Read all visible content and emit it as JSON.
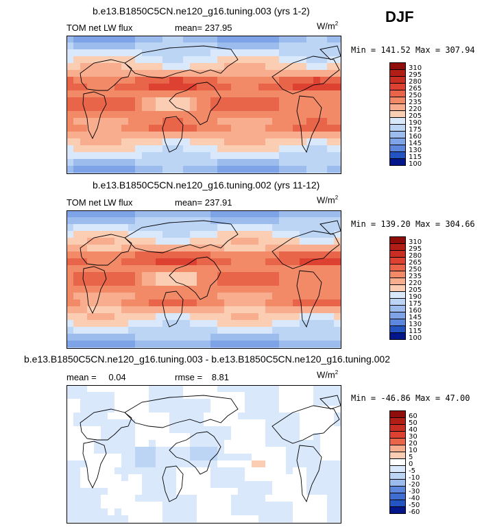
{
  "season": "DJF",
  "colors": {
    "warm": [
      "#fbe3d3",
      "#fbcdb3",
      "#f7ad8e",
      "#f28a68",
      "#e9654a",
      "#dc4131",
      "#c92e22",
      "#b01e16",
      "#8f0d0b"
    ],
    "cool": [
      "#d9e8fb",
      "#bcd5f5",
      "#9dbcee",
      "#7ea3e6",
      "#5c87dc",
      "#3f6dd2",
      "#2453c2",
      "#1339a6",
      "#04178a"
    ]
  },
  "chart_data": [
    {
      "type": "heatmap",
      "title": "b.e13.B1850C5CN.ne120_g16.tuning.003 (yrs 1-2)",
      "variable": "TOM net LW flux",
      "stat_label": "mean=",
      "stat_value": "237.95",
      "units": "W/m",
      "units_exp": "2",
      "min_label": "Min =",
      "min": "141.52",
      "max_label": "Max =",
      "max": "307.94",
      "colorbar_levels": [
        "310",
        "295",
        "280",
        "265",
        "250",
        "235",
        "220",
        "205",
        "190",
        "175",
        "160",
        "145",
        "130",
        "115",
        "100"
      ]
    },
    {
      "type": "heatmap",
      "title": "b.e13.B1850C5CN.ne120_g16.tuning.002 (yrs 11-12)",
      "variable": "TOM net LW flux",
      "stat_label": "mean=",
      "stat_value": "237.91",
      "units": "W/m",
      "units_exp": "2",
      "min_label": "Min =",
      "min": "139.20",
      "max_label": "Max =",
      "max": "304.66",
      "colorbar_levels": [
        "310",
        "295",
        "280",
        "265",
        "250",
        "235",
        "220",
        "205",
        "190",
        "175",
        "160",
        "145",
        "130",
        "115",
        "100"
      ]
    },
    {
      "type": "heatmap",
      "title": "b.e13.B1850C5CN.ne120_g16.tuning.003 - b.e13.B1850C5CN.ne120_g16.tuning.002",
      "mean_label": "mean =",
      "mean_value": "0.04",
      "rmse_label": "rmse =",
      "rmse_value": "8.81",
      "units": "W/m",
      "units_exp": "2",
      "min_label": "Min =",
      "min": "-46.86",
      "max_label": "Max =",
      "max": "47.00",
      "colorbar_levels": [
        "60",
        "50",
        "40",
        "30",
        "20",
        "10",
        "5",
        "0",
        "-5",
        "-10",
        "-20",
        "-30",
        "-40",
        "-50",
        "-60"
      ]
    }
  ]
}
